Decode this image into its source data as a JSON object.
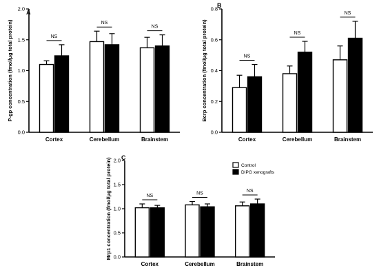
{
  "chart_data": [
    {
      "panel": "A",
      "type": "bar",
      "ylabel": "P-gp concentration (fmol/μg total protein)",
      "categories": [
        "Cortex",
        "Cerebellum",
        "Brainstem"
      ],
      "ylim": [
        0,
        2.0
      ],
      "yticks": [
        "0.0",
        "0.5",
        "1.0",
        "1.5",
        "2.0"
      ],
      "series": [
        {
          "values": [
            1.1,
            1.47,
            1.37
          ],
          "errors": [
            0.06,
            0.17,
            0.17
          ]
        },
        {
          "values": [
            1.24,
            1.42,
            1.4
          ],
          "errors": [
            0.18,
            0.18,
            0.18
          ]
        }
      ],
      "annotations": [
        "NS",
        "NS",
        "NS"
      ]
    },
    {
      "panel": "B",
      "type": "bar",
      "ylabel": "Bcrp concentration (fmol/μg total protein)",
      "categories": [
        "Cortex",
        "Cerebellum",
        "Brainstem"
      ],
      "ylim": [
        0,
        0.8
      ],
      "yticks": [
        "0.0",
        "0.2",
        "0.4",
        "0.6",
        "0.8"
      ],
      "series": [
        {
          "values": [
            0.29,
            0.38,
            0.47
          ],
          "errors": [
            0.08,
            0.05,
            0.09
          ]
        },
        {
          "values": [
            0.36,
            0.52,
            0.61
          ],
          "errors": [
            0.08,
            0.07,
            0.11
          ]
        }
      ],
      "annotations": [
        "NS",
        "NS",
        "NS"
      ]
    },
    {
      "panel": "C",
      "type": "bar",
      "ylabel": "Mrp1 concentration (fmol/μg total protein)",
      "categories": [
        "Cortex",
        "Cerebellum",
        "Brainstem"
      ],
      "ylim": [
        0,
        2.0
      ],
      "yticks": [
        "0.0",
        "0.5",
        "1.0",
        "1.5",
        "2.0"
      ],
      "series": [
        {
          "name": "Control",
          "values": [
            1.02,
            1.08,
            1.06
          ],
          "errors": [
            0.08,
            0.07,
            0.08
          ]
        },
        {
          "name": "DIPG xenografts",
          "values": [
            1.02,
            1.04,
            1.1
          ],
          "errors": [
            0.05,
            0.06,
            0.1
          ]
        }
      ],
      "annotations": [
        "NS",
        "NS",
        "NS"
      ]
    }
  ],
  "colors": {
    "control_fill": "#ffffff",
    "xenograft_fill": "#000000",
    "stroke": "#000000"
  }
}
